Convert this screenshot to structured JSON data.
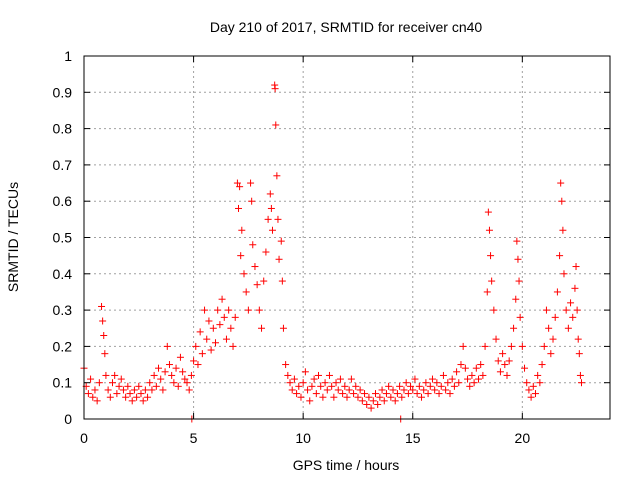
{
  "chart_data": {
    "type": "scatter",
    "title": "Day 210 of 2017, SRMTID for receiver cn40",
    "xlabel": "GPS time / hours",
    "ylabel": "SRMTID / TECUs",
    "xlim": [
      0,
      24
    ],
    "ylim": [
      0,
      1
    ],
    "x_ticks": [
      0,
      5,
      10,
      15,
      20
    ],
    "x_tick_labels": [
      "0",
      "5",
      "10",
      "15",
      "20"
    ],
    "y_ticks": [
      0,
      0.1,
      0.2,
      0.3,
      0.4,
      0.5,
      0.6,
      0.7,
      0.8,
      0.9,
      1
    ],
    "y_tick_labels": [
      "0",
      "0.1",
      "0.2",
      "0.3",
      "0.4",
      "0.5",
      "0.6",
      "0.7",
      "0.8",
      "0.9",
      "1"
    ],
    "grid": true,
    "marker": "+",
    "color": "#ff0000",
    "series": [
      {
        "name": "SRMTID",
        "points": [
          [
            0.0,
            0.14
          ],
          [
            0.1,
            0.09
          ],
          [
            0.2,
            0.07
          ],
          [
            0.3,
            0.11
          ],
          [
            0.4,
            0.06
          ],
          [
            0.5,
            0.08
          ],
          [
            0.6,
            0.05
          ],
          [
            0.7,
            0.1
          ],
          [
            0.8,
            0.31
          ],
          [
            0.85,
            0.27
          ],
          [
            0.9,
            0.23
          ],
          [
            0.95,
            0.18
          ],
          [
            1.0,
            0.12
          ],
          [
            1.1,
            0.08
          ],
          [
            1.2,
            0.06
          ],
          [
            1.3,
            0.1
          ],
          [
            1.4,
            0.12
          ],
          [
            1.5,
            0.07
          ],
          [
            1.6,
            0.09
          ],
          [
            1.7,
            0.11
          ],
          [
            1.8,
            0.08
          ],
          [
            1.9,
            0.06
          ],
          [
            2.0,
            0.09
          ],
          [
            2.1,
            0.07
          ],
          [
            2.2,
            0.05
          ],
          [
            2.3,
            0.08
          ],
          [
            2.4,
            0.06
          ],
          [
            2.5,
            0.09
          ],
          [
            2.6,
            0.07
          ],
          [
            2.7,
            0.05
          ],
          [
            2.8,
            0.08
          ],
          [
            2.9,
            0.06
          ],
          [
            3.0,
            0.1
          ],
          [
            3.1,
            0.08
          ],
          [
            3.2,
            0.12
          ],
          [
            3.3,
            0.09
          ],
          [
            3.4,
            0.14
          ],
          [
            3.5,
            0.11
          ],
          [
            3.6,
            0.08
          ],
          [
            3.7,
            0.13
          ],
          [
            3.8,
            0.2
          ],
          [
            3.9,
            0.15
          ],
          [
            4.0,
            0.12
          ],
          [
            4.1,
            0.1
          ],
          [
            4.2,
            0.14
          ],
          [
            4.3,
            0.09
          ],
          [
            4.4,
            0.17
          ],
          [
            4.5,
            0.13
          ],
          [
            4.6,
            0.11
          ],
          [
            4.7,
            0.1
          ],
          [
            4.8,
            0.08
          ],
          [
            4.9,
            0.12
          ],
          [
            4.92,
            0.0
          ],
          [
            5.0,
            0.16
          ],
          [
            5.1,
            0.2
          ],
          [
            5.2,
            0.15
          ],
          [
            5.3,
            0.24
          ],
          [
            5.4,
            0.18
          ],
          [
            5.5,
            0.3
          ],
          [
            5.6,
            0.22
          ],
          [
            5.7,
            0.27
          ],
          [
            5.8,
            0.19
          ],
          [
            5.9,
            0.25
          ],
          [
            6.0,
            0.21
          ],
          [
            6.1,
            0.3
          ],
          [
            6.2,
            0.26
          ],
          [
            6.3,
            0.33
          ],
          [
            6.4,
            0.28
          ],
          [
            6.5,
            0.22
          ],
          [
            6.6,
            0.3
          ],
          [
            6.7,
            0.25
          ],
          [
            6.8,
            0.2
          ],
          [
            6.9,
            0.28
          ],
          [
            7.0,
            0.65
          ],
          [
            7.05,
            0.58
          ],
          [
            7.1,
            0.64
          ],
          [
            7.15,
            0.45
          ],
          [
            7.2,
            0.52
          ],
          [
            7.3,
            0.4
          ],
          [
            7.4,
            0.35
          ],
          [
            7.5,
            0.3
          ],
          [
            7.6,
            0.65
          ],
          [
            7.65,
            0.6
          ],
          [
            7.7,
            0.48
          ],
          [
            7.8,
            0.42
          ],
          [
            7.9,
            0.37
          ],
          [
            8.0,
            0.3
          ],
          [
            8.1,
            0.25
          ],
          [
            8.2,
            0.38
          ],
          [
            8.3,
            0.46
          ],
          [
            8.4,
            0.55
          ],
          [
            8.5,
            0.62
          ],
          [
            8.55,
            0.58
          ],
          [
            8.6,
            0.52
          ],
          [
            8.7,
            0.92
          ],
          [
            8.72,
            0.91
          ],
          [
            8.75,
            0.81
          ],
          [
            8.8,
            0.67
          ],
          [
            8.85,
            0.55
          ],
          [
            8.9,
            0.44
          ],
          [
            9.0,
            0.49
          ],
          [
            9.05,
            0.38
          ],
          [
            9.1,
            0.25
          ],
          [
            9.2,
            0.15
          ],
          [
            9.3,
            0.12
          ],
          [
            9.4,
            0.1
          ],
          [
            9.5,
            0.08
          ],
          [
            9.6,
            0.11
          ],
          [
            9.7,
            0.07
          ],
          [
            9.8,
            0.09
          ],
          [
            9.9,
            0.06
          ],
          [
            10.0,
            0.1
          ],
          [
            10.1,
            0.13
          ],
          [
            10.2,
            0.08
          ],
          [
            10.3,
            0.05
          ],
          [
            10.4,
            0.09
          ],
          [
            10.5,
            0.11
          ],
          [
            10.6,
            0.07
          ],
          [
            10.7,
            0.12
          ],
          [
            10.8,
            0.09
          ],
          [
            10.9,
            0.06
          ],
          [
            11.0,
            0.1
          ],
          [
            11.1,
            0.08
          ],
          [
            11.2,
            0.12
          ],
          [
            11.3,
            0.09
          ],
          [
            11.4,
            0.06
          ],
          [
            11.5,
            0.1
          ],
          [
            11.6,
            0.08
          ],
          [
            11.7,
            0.11
          ],
          [
            11.8,
            0.07
          ],
          [
            11.9,
            0.09
          ],
          [
            12.0,
            0.06
          ],
          [
            12.1,
            0.08
          ],
          [
            12.2,
            0.11
          ],
          [
            12.3,
            0.07
          ],
          [
            12.4,
            0.09
          ],
          [
            12.5,
            0.06
          ],
          [
            12.6,
            0.08
          ],
          [
            12.7,
            0.05
          ],
          [
            12.8,
            0.07
          ],
          [
            12.9,
            0.04
          ],
          [
            13.0,
            0.06
          ],
          [
            13.1,
            0.03
          ],
          [
            13.2,
            0.05
          ],
          [
            13.3,
            0.07
          ],
          [
            13.4,
            0.04
          ],
          [
            13.5,
            0.06
          ],
          [
            13.6,
            0.08
          ],
          [
            13.7,
            0.05
          ],
          [
            13.8,
            0.07
          ],
          [
            13.9,
            0.09
          ],
          [
            14.0,
            0.06
          ],
          [
            14.1,
            0.08
          ],
          [
            14.2,
            0.05
          ],
          [
            14.3,
            0.07
          ],
          [
            14.4,
            0.09
          ],
          [
            14.45,
            0.0
          ],
          [
            14.5,
            0.06
          ],
          [
            14.6,
            0.08
          ],
          [
            14.7,
            0.1
          ],
          [
            14.8,
            0.07
          ],
          [
            14.9,
            0.09
          ],
          [
            15.0,
            0.08
          ],
          [
            15.1,
            0.11
          ],
          [
            15.2,
            0.07
          ],
          [
            15.3,
            0.09
          ],
          [
            15.4,
            0.06
          ],
          [
            15.5,
            0.08
          ],
          [
            15.6,
            0.1
          ],
          [
            15.7,
            0.07
          ],
          [
            15.8,
            0.09
          ],
          [
            15.9,
            0.11
          ],
          [
            16.0,
            0.08
          ],
          [
            16.1,
            0.1
          ],
          [
            16.2,
            0.07
          ],
          [
            16.3,
            0.09
          ],
          [
            16.4,
            0.12
          ],
          [
            16.5,
            0.08
          ],
          [
            16.6,
            0.1
          ],
          [
            16.7,
            0.07
          ],
          [
            16.8,
            0.11
          ],
          [
            16.9,
            0.09
          ],
          [
            17.0,
            0.13
          ],
          [
            17.1,
            0.1
          ],
          [
            17.2,
            0.15
          ],
          [
            17.3,
            0.2
          ],
          [
            17.4,
            0.14
          ],
          [
            17.5,
            0.11
          ],
          [
            17.6,
            0.09
          ],
          [
            17.7,
            0.12
          ],
          [
            17.8,
            0.1
          ],
          [
            17.9,
            0.14
          ],
          [
            18.0,
            0.11
          ],
          [
            18.1,
            0.15
          ],
          [
            18.2,
            0.12
          ],
          [
            18.3,
            0.2
          ],
          [
            18.4,
            0.35
          ],
          [
            18.45,
            0.57
          ],
          [
            18.5,
            0.52
          ],
          [
            18.55,
            0.45
          ],
          [
            18.6,
            0.38
          ],
          [
            18.7,
            0.3
          ],
          [
            18.8,
            0.22
          ],
          [
            18.9,
            0.16
          ],
          [
            19.0,
            0.13
          ],
          [
            19.1,
            0.18
          ],
          [
            19.2,
            0.15
          ],
          [
            19.3,
            0.12
          ],
          [
            19.4,
            0.16
          ],
          [
            19.5,
            0.2
          ],
          [
            19.6,
            0.25
          ],
          [
            19.7,
            0.33
          ],
          [
            19.75,
            0.49
          ],
          [
            19.8,
            0.44
          ],
          [
            19.85,
            0.38
          ],
          [
            19.9,
            0.28
          ],
          [
            20.0,
            0.2
          ],
          [
            20.1,
            0.14
          ],
          [
            20.2,
            0.1
          ],
          [
            20.3,
            0.08
          ],
          [
            20.4,
            0.06
          ],
          [
            20.5,
            0.09
          ],
          [
            20.6,
            0.07
          ],
          [
            20.7,
            0.12
          ],
          [
            20.8,
            0.1
          ],
          [
            20.9,
            0.15
          ],
          [
            21.0,
            0.2
          ],
          [
            21.1,
            0.3
          ],
          [
            21.2,
            0.25
          ],
          [
            21.3,
            0.18
          ],
          [
            21.4,
            0.22
          ],
          [
            21.5,
            0.28
          ],
          [
            21.6,
            0.35
          ],
          [
            21.7,
            0.45
          ],
          [
            21.75,
            0.65
          ],
          [
            21.8,
            0.6
          ],
          [
            21.85,
            0.52
          ],
          [
            21.9,
            0.4
          ],
          [
            22.0,
            0.3
          ],
          [
            22.1,
            0.25
          ],
          [
            22.2,
            0.32
          ],
          [
            22.3,
            0.28
          ],
          [
            22.4,
            0.36
          ],
          [
            22.45,
            0.42
          ],
          [
            22.5,
            0.3
          ],
          [
            22.55,
            0.22
          ],
          [
            22.6,
            0.18
          ],
          [
            22.65,
            0.12
          ],
          [
            22.7,
            0.1
          ]
        ]
      }
    ]
  }
}
